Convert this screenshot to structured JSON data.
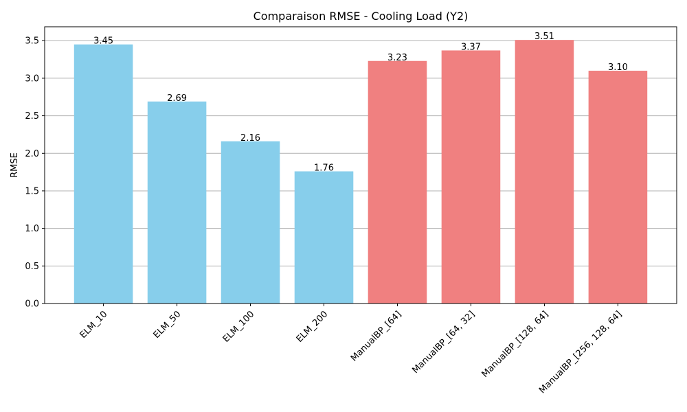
{
  "chart_data": {
    "type": "bar",
    "title": "Comparaison RMSE - Cooling Load (Y2)",
    "xlabel": "",
    "ylabel": "RMSE",
    "categories": [
      "ELM_10",
      "ELM_50",
      "ELM_100",
      "ELM_200",
      "ManualBP_[64]",
      "ManualBP_[64, 32]",
      "ManualBP_[128, 64]",
      "ManualBP_[256, 128, 64]"
    ],
    "values": [
      3.45,
      2.69,
      2.16,
      1.76,
      3.23,
      3.37,
      3.51,
      3.1
    ],
    "value_labels": [
      "3.45",
      "2.69",
      "2.16",
      "1.76",
      "3.23",
      "3.37",
      "3.51",
      "3.10"
    ],
    "bar_colors": [
      "#87ceeb",
      "#87ceeb",
      "#87ceeb",
      "#87ceeb",
      "#f08080",
      "#f08080",
      "#f08080",
      "#f08080"
    ],
    "ylim": [
      0,
      3.685
    ],
    "yticks": [
      0.0,
      0.5,
      1.0,
      1.5,
      2.0,
      2.5,
      3.0,
      3.5
    ],
    "ytick_labels": [
      "0.0",
      "0.5",
      "1.0",
      "1.5",
      "2.0",
      "2.5",
      "3.0",
      "3.5"
    ],
    "grid": "y",
    "legend": "none"
  }
}
